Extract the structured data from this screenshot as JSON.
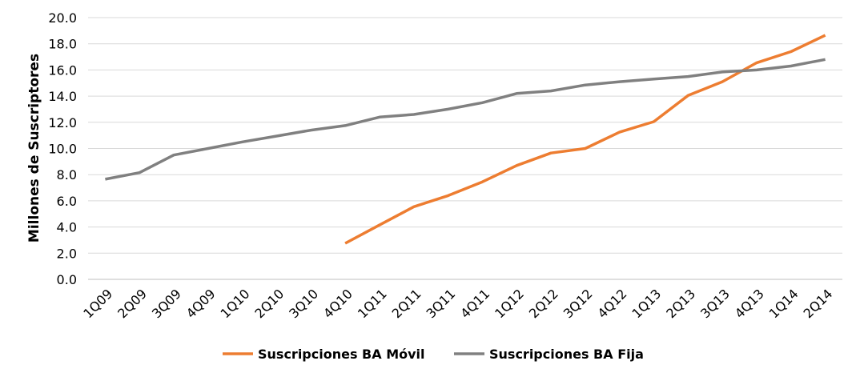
{
  "chart_data": {
    "type": "line",
    "title": "",
    "xlabel": "",
    "ylabel": "Millones de Suscriptores",
    "ylim": [
      0,
      20
    ],
    "yticks": [
      "0.0",
      "2.0",
      "4.0",
      "6.0",
      "8.0",
      "10.0",
      "12.0",
      "14.0",
      "16.0",
      "18.0",
      "20.0"
    ],
    "grid": true,
    "legend_position": "bottom",
    "categories": [
      "1Q09",
      "2Q09",
      "3Q09",
      "4Q09",
      "1Q10",
      "2Q10",
      "3Q10",
      "4Q10",
      "1Q11",
      "2Q11",
      "3Q11",
      "4Q11",
      "1Q12",
      "2Q12",
      "3Q12",
      "4Q12",
      "1Q13",
      "2Q13",
      "3Q13",
      "4Q13",
      "1Q14",
      "2Q14"
    ],
    "series": [
      {
        "name": "Suscripciones BA Móvil",
        "color": "#ED7D31",
        "values": [
          null,
          null,
          null,
          null,
          null,
          null,
          null,
          2.75,
          4.15,
          5.55,
          6.4,
          7.45,
          8.7,
          9.65,
          10.0,
          11.25,
          12.05,
          14.05,
          15.1,
          16.55,
          17.4,
          18.65
        ]
      },
      {
        "name": "Suscripciones BA Fija",
        "color": "#808080",
        "values": [
          7.65,
          8.15,
          9.5,
          10.0,
          10.5,
          10.95,
          11.4,
          11.75,
          12.4,
          12.6,
          13.0,
          13.5,
          14.2,
          14.4,
          14.85,
          15.1,
          15.3,
          15.5,
          15.85,
          16.0,
          16.3,
          16.8
        ]
      }
    ]
  }
}
